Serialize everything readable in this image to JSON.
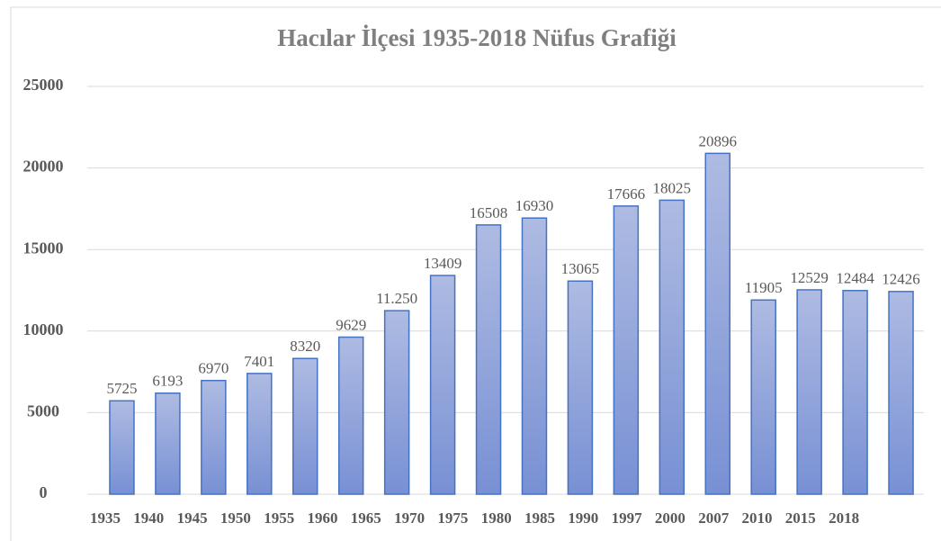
{
  "chart_data": {
    "type": "bar",
    "title": "Hacılar İlçesi 1935-2018 Nüfus Grafiği",
    "categories": [
      "1935",
      "1940",
      "1945",
      "1950",
      "1955",
      "1960",
      "1965",
      "1970",
      "1975",
      "1980",
      "1985",
      "1990",
      "1997",
      "2000",
      "2007",
      "2010",
      "2015",
      "2018"
    ],
    "values": [
      5725,
      6193,
      6970,
      7401,
      8320,
      9629,
      11250,
      13409,
      16508,
      16930,
      13065,
      17666,
      18025,
      20896,
      11905,
      12529,
      12484,
      12426
    ],
    "value_labels": [
      "5725",
      "6193",
      "6970",
      "7401",
      "8320",
      "9629",
      "11.250",
      "13409",
      "16508",
      "16930",
      "13065",
      "17666",
      "18025",
      "20896",
      "11905",
      "12529",
      "12484",
      "12426"
    ],
    "color": "#4472c4",
    "ylim": [
      0,
      25000
    ],
    "yticks": [
      0,
      5000,
      10000,
      15000,
      20000,
      25000
    ],
    "grid": true
  }
}
